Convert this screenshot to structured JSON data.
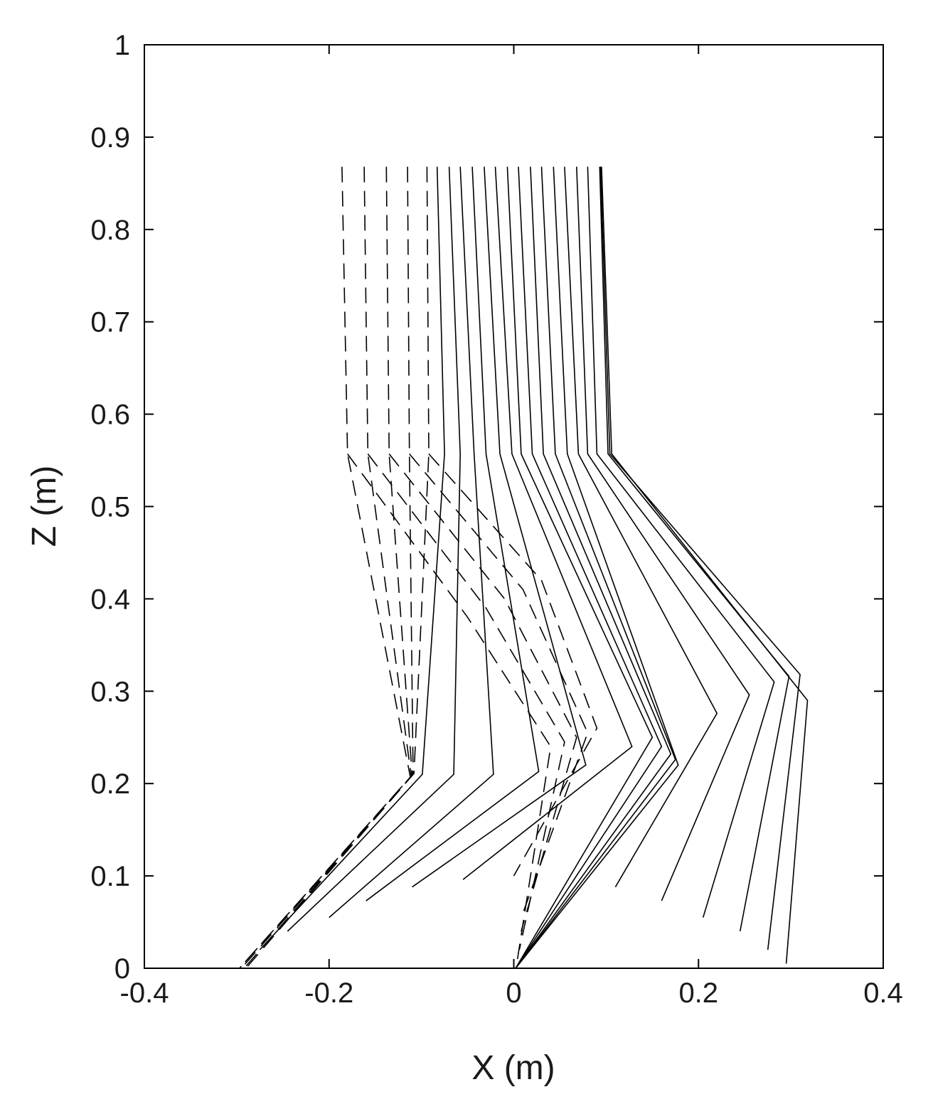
{
  "chart_data": {
    "type": "line",
    "title": "",
    "xlabel": "X (m)",
    "ylabel": "Z (m)",
    "xlim": [
      -0.4,
      0.4
    ],
    "ylim": [
      0,
      1
    ],
    "x_ticks": [
      -0.4,
      -0.2,
      0,
      0.2,
      0.4
    ],
    "x_tick_labels": [
      "-0.4",
      "-0.2",
      "0",
      "0.2",
      "0.4"
    ],
    "y_ticks": [
      0,
      0.1,
      0.2,
      0.3,
      0.4,
      0.5,
      0.6,
      0.7,
      0.8,
      0.9,
      1
    ],
    "y_tick_labels": [
      "0",
      "0.1",
      "0.2",
      "0.3",
      "0.4",
      "0.5",
      "0.6",
      "0.7",
      "0.8",
      "0.9",
      "1"
    ],
    "grid": false,
    "series": [
      {
        "style": "dashed",
        "points": [
          [
            -0.186,
            0.868
          ],
          [
            -0.18,
            0.557
          ],
          [
            -0.112,
            0.207
          ],
          [
            -0.297,
            0.0
          ]
        ]
      },
      {
        "style": "dashed",
        "points": [
          [
            -0.162,
            0.868
          ],
          [
            -0.158,
            0.557
          ],
          [
            -0.111,
            0.208
          ],
          [
            -0.297,
            0.0
          ]
        ]
      },
      {
        "style": "dashed",
        "points": [
          [
            -0.138,
            0.868
          ],
          [
            -0.135,
            0.557
          ],
          [
            -0.11,
            0.209
          ],
          [
            -0.295,
            0.0
          ]
        ]
      },
      {
        "style": "dashed",
        "points": [
          [
            -0.115,
            0.868
          ],
          [
            -0.113,
            0.557
          ],
          [
            -0.109,
            0.21
          ],
          [
            -0.292,
            0.0
          ]
        ]
      },
      {
        "style": "dashed",
        "points": [
          [
            -0.094,
            0.868
          ],
          [
            -0.092,
            0.557
          ],
          [
            -0.108,
            0.211
          ],
          [
            -0.29,
            0.0
          ]
        ]
      },
      {
        "style": "dashed",
        "points": [
          [
            -0.18,
            0.557
          ],
          [
            -0.05,
            0.38
          ],
          [
            0.04,
            0.24
          ],
          [
            0.004,
            0.01
          ]
        ]
      },
      {
        "style": "dashed",
        "points": [
          [
            -0.158,
            0.557
          ],
          [
            -0.03,
            0.39
          ],
          [
            0.055,
            0.245
          ],
          [
            0.006,
            0.02
          ]
        ]
      },
      {
        "style": "dashed",
        "points": [
          [
            -0.135,
            0.557
          ],
          [
            -0.01,
            0.4
          ],
          [
            0.068,
            0.25
          ],
          [
            0.008,
            0.04
          ]
        ]
      },
      {
        "style": "dashed",
        "points": [
          [
            -0.113,
            0.557
          ],
          [
            0.01,
            0.41
          ],
          [
            0.08,
            0.255
          ],
          [
            0.01,
            0.06
          ]
        ]
      },
      {
        "style": "dashed",
        "points": [
          [
            -0.092,
            0.557
          ],
          [
            0.03,
            0.42
          ],
          [
            0.09,
            0.26
          ],
          [
            0.0,
            0.1
          ]
        ]
      },
      {
        "style": "solid",
        "points": [
          [
            -0.083,
            0.868
          ],
          [
            -0.075,
            0.557
          ],
          [
            -0.099,
            0.21
          ],
          [
            -0.275,
            0.02
          ]
        ]
      },
      {
        "style": "solid",
        "points": [
          [
            -0.07,
            0.868
          ],
          [
            -0.058,
            0.557
          ],
          [
            -0.065,
            0.21
          ],
          [
            -0.245,
            0.04
          ]
        ]
      },
      {
        "style": "solid",
        "points": [
          [
            -0.058,
            0.868
          ],
          [
            -0.043,
            0.557
          ],
          [
            -0.022,
            0.21
          ],
          [
            -0.2,
            0.055
          ]
        ]
      },
      {
        "style": "solid",
        "points": [
          [
            -0.045,
            0.868
          ],
          [
            -0.03,
            0.557
          ],
          [
            0.027,
            0.213
          ],
          [
            -0.16,
            0.073
          ]
        ]
      },
      {
        "style": "solid",
        "points": [
          [
            -0.032,
            0.868
          ],
          [
            -0.015,
            0.557
          ],
          [
            0.078,
            0.22
          ],
          [
            -0.11,
            0.088
          ]
        ]
      },
      {
        "style": "solid",
        "points": [
          [
            -0.02,
            0.868
          ],
          [
            -0.002,
            0.557
          ],
          [
            0.128,
            0.24
          ],
          [
            -0.055,
            0.096
          ]
        ]
      },
      {
        "style": "solid",
        "points": [
          [
            -0.007,
            0.868
          ],
          [
            0.008,
            0.557
          ],
          [
            0.15,
            0.25
          ],
          [
            0.002,
            0.0
          ]
        ]
      },
      {
        "style": "solid",
        "points": [
          [
            0.005,
            0.868
          ],
          [
            0.02,
            0.557
          ],
          [
            0.16,
            0.24
          ],
          [
            0.002,
            0.0
          ]
        ]
      },
      {
        "style": "solid",
        "points": [
          [
            0.018,
            0.868
          ],
          [
            0.032,
            0.557
          ],
          [
            0.17,
            0.232
          ],
          [
            0.002,
            0.0
          ]
        ]
      },
      {
        "style": "solid",
        "points": [
          [
            0.03,
            0.868
          ],
          [
            0.045,
            0.557
          ],
          [
            0.175,
            0.226
          ],
          [
            0.002,
            0.0
          ]
        ]
      },
      {
        "style": "solid",
        "points": [
          [
            0.043,
            0.868
          ],
          [
            0.058,
            0.557
          ],
          [
            0.178,
            0.22
          ],
          [
            0.002,
            0.0
          ]
        ]
      },
      {
        "style": "solid",
        "points": [
          [
            0.055,
            0.868
          ],
          [
            0.07,
            0.557
          ],
          [
            0.22,
            0.276
          ],
          [
            0.11,
            0.088
          ]
        ]
      },
      {
        "style": "solid",
        "points": [
          [
            0.068,
            0.868
          ],
          [
            0.08,
            0.557
          ],
          [
            0.255,
            0.296
          ],
          [
            0.16,
            0.073
          ]
        ]
      },
      {
        "style": "solid",
        "points": [
          [
            0.08,
            0.868
          ],
          [
            0.09,
            0.557
          ],
          [
            0.282,
            0.31
          ],
          [
            0.205,
            0.055
          ]
        ]
      },
      {
        "style": "solid",
        "points": [
          [
            0.093,
            0.868
          ],
          [
            0.102,
            0.557
          ],
          [
            0.298,
            0.316
          ],
          [
            0.245,
            0.04
          ]
        ]
      },
      {
        "style": "solid",
        "points": [
          [
            0.094,
            0.868
          ],
          [
            0.104,
            0.557
          ],
          [
            0.31,
            0.318
          ],
          [
            0.275,
            0.02
          ]
        ]
      },
      {
        "style": "solid",
        "points": [
          [
            0.095,
            0.868
          ],
          [
            0.106,
            0.557
          ],
          [
            0.318,
            0.29
          ],
          [
            0.295,
            0.005
          ]
        ]
      }
    ]
  }
}
